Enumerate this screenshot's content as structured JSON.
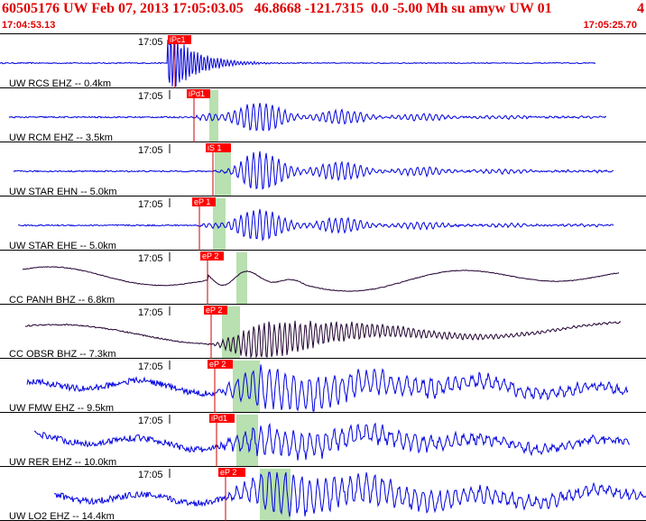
{
  "header": {
    "title": "60505176 UW Feb 07, 2013 17:05:03.05   46.8668 -121.7315  0.0 -5.00 Mh su amyw UW 01",
    "page_number": "4",
    "start_time": "17:04:53.13",
    "end_time": "17:05:25.70"
  },
  "colors": {
    "header_text": "#e00000",
    "trace_default": "#0000e0",
    "trace_dark": "#200030",
    "pick_box": "#ff0000",
    "pick_line": "#cc0000",
    "arrival_band": "#b8e0b0",
    "separator": "#000000"
  },
  "traces": [
    {
      "label": "UW RCS EHZ -- 0.4km",
      "time_mark": "17:05",
      "pick": "iPc1",
      "color": "blue"
    },
    {
      "label": "UW RCM EHZ -- 3.5km",
      "time_mark": "17:05",
      "pick": "iPd1",
      "color": "blue"
    },
    {
      "label": "UW STAR EHN -- 5.0km",
      "time_mark": "17:05",
      "pick": "iS 1",
      "color": "blue"
    },
    {
      "label": "UW STAR EHE -- 5.0km",
      "time_mark": "17:05",
      "pick": "eP 1",
      "color": "blue"
    },
    {
      "label": "CC PANH BHZ -- 6.8km",
      "time_mark": "17:05",
      "pick": "eP 2",
      "color": "dark"
    },
    {
      "label": "CC OBSR BHZ -- 7.3km",
      "time_mark": "17:05",
      "pick": "eP 2",
      "color": "dark"
    },
    {
      "label": "UW FMW EHZ -- 9.5km",
      "time_mark": "17:05",
      "pick": "eP 2",
      "color": "blue"
    },
    {
      "label": "UW RER EHZ -- 10.0km",
      "time_mark": "17:05",
      "pick": "iPd1",
      "color": "blue"
    },
    {
      "label": "UW LO2 EHZ -- 14.4km",
      "time_mark": "17:05",
      "pick": "eP 2",
      "color": "blue"
    }
  ]
}
